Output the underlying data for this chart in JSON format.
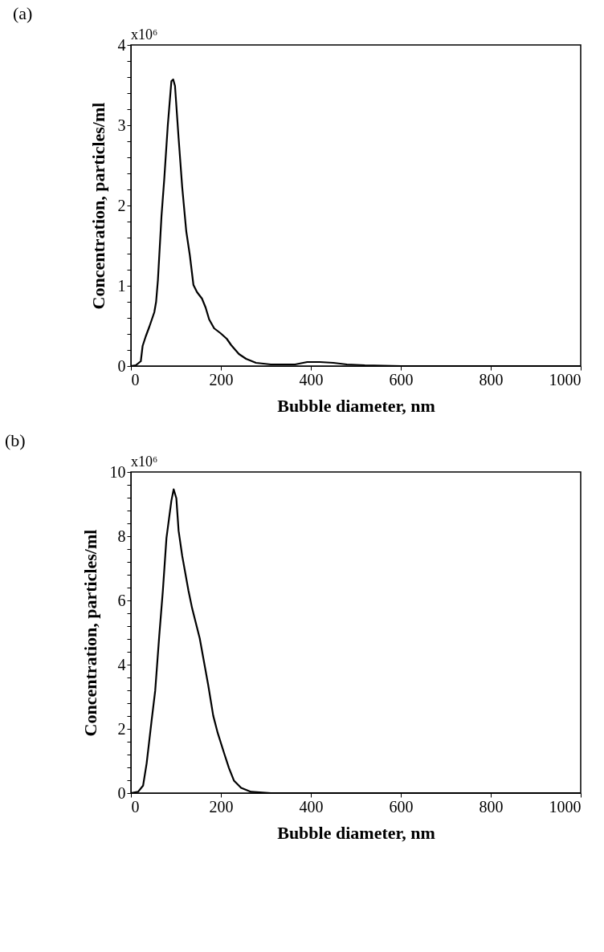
{
  "chart_data": [
    {
      "type": "line",
      "title": "(a)",
      "xlabel": "Bubble diameter, nm",
      "ylabel": "Concentration, particles/ml",
      "annotations": [
        "x10⁶"
      ],
      "x": [
        0,
        11,
        22,
        26,
        33,
        41,
        52,
        56,
        60,
        68,
        74,
        82,
        90,
        94,
        98,
        106,
        114,
        123,
        131,
        139,
        147,
        158,
        166,
        174,
        185,
        199,
        213,
        223,
        240,
        256,
        278,
        311,
        365,
        392,
        420,
        450,
        480,
        520,
        600,
        1000
      ],
      "series": [
        {
          "color": "#000000",
          "values": [
            0,
            0.01,
            0.06,
            0.25,
            0.37,
            0.49,
            0.67,
            0.8,
            1.07,
            1.87,
            2.32,
            3.0,
            3.55,
            3.57,
            3.49,
            2.84,
            2.23,
            1.68,
            1.38,
            1.01,
            0.92,
            0.84,
            0.73,
            0.58,
            0.47,
            0.41,
            0.34,
            0.26,
            0.15,
            0.09,
            0.04,
            0.02,
            0.02,
            0.05,
            0.05,
            0.04,
            0.02,
            0.01,
            0,
            0
          ]
        }
      ],
      "xlim": [
        0,
        1000
      ],
      "xticks": [
        0,
        200,
        400,
        600,
        800,
        1000
      ],
      "ylim": [
        0,
        4
      ],
      "yticks": [
        0,
        {
          "value": 0.2,
          "label": null
        },
        {
          "value": 0.4,
          "label": null
        },
        {
          "value": 0.6,
          "label": null
        },
        {
          "value": 0.8,
          "label": null
        },
        1,
        {
          "value": 1.2,
          "label": null
        },
        {
          "value": 1.4,
          "label": null
        },
        {
          "value": 1.6,
          "label": null
        },
        {
          "value": 1.8,
          "label": null
        },
        2,
        {
          "value": 2.2,
          "label": null
        },
        {
          "value": 2.4,
          "label": null
        },
        {
          "value": 2.6,
          "label": null
        },
        {
          "value": 2.8,
          "label": null
        },
        3,
        {
          "value": 3.2,
          "label": null
        },
        {
          "value": 3.4,
          "label": null
        },
        {
          "value": 3.6,
          "label": null
        },
        {
          "value": 3.8,
          "label": null
        },
        4
      ],
      "grid": false,
      "marker": "none",
      "line_style": "solid"
    },
    {
      "type": "line",
      "title": "(b)",
      "xlabel": "Bubble diameter, nm",
      "ylabel": "Concentration, particles/ml",
      "annotations": [
        "x10⁶"
      ],
      "x": [
        0,
        16,
        27,
        35,
        46,
        54,
        63,
        71,
        79,
        90,
        95,
        101,
        106,
        114,
        128,
        136,
        153,
        161,
        172,
        183,
        193,
        207,
        218,
        229,
        245,
        267,
        311,
        1000
      ],
      "series": [
        {
          "color": "#000000",
          "values": [
            0,
            0.04,
            0.23,
            0.93,
            2.26,
            3.19,
            4.9,
            6.3,
            7.94,
            9.11,
            9.46,
            9.18,
            8.17,
            7.39,
            6.3,
            5.76,
            4.82,
            4.2,
            3.35,
            2.41,
            1.87,
            1.25,
            0.78,
            0.39,
            0.16,
            0.04,
            0,
            0
          ]
        }
      ],
      "xlim": [
        0,
        1000
      ],
      "xticks": [
        0,
        200,
        400,
        600,
        800,
        1000
      ],
      "ylim": [
        0,
        10
      ],
      "yticks": [
        0,
        {
          "value": 0.4,
          "label": null
        },
        {
          "value": 0.8,
          "label": null
        },
        {
          "value": 1.2,
          "label": null
        },
        {
          "value": 1.6,
          "label": null
        },
        2,
        {
          "value": 2.4,
          "label": null
        },
        {
          "value": 2.8,
          "label": null
        },
        {
          "value": 3.2,
          "label": null
        },
        {
          "value": 3.6,
          "label": null
        },
        4,
        {
          "value": 4.4,
          "label": null
        },
        {
          "value": 4.8,
          "label": null
        },
        {
          "value": 5.2,
          "label": null
        },
        {
          "value": 5.6,
          "label": null
        },
        6,
        {
          "value": 6.4,
          "label": null
        },
        {
          "value": 6.8,
          "label": null
        },
        {
          "value": 7.2,
          "label": null
        },
        {
          "value": 7.6,
          "label": null
        },
        8,
        {
          "value": 8.4,
          "label": null
        },
        {
          "value": 8.8,
          "label": null
        },
        {
          "value": 9.2,
          "label": null
        },
        {
          "value": 9.6,
          "label": null
        },
        10
      ],
      "grid": false,
      "marker": "none",
      "line_style": "solid"
    }
  ]
}
